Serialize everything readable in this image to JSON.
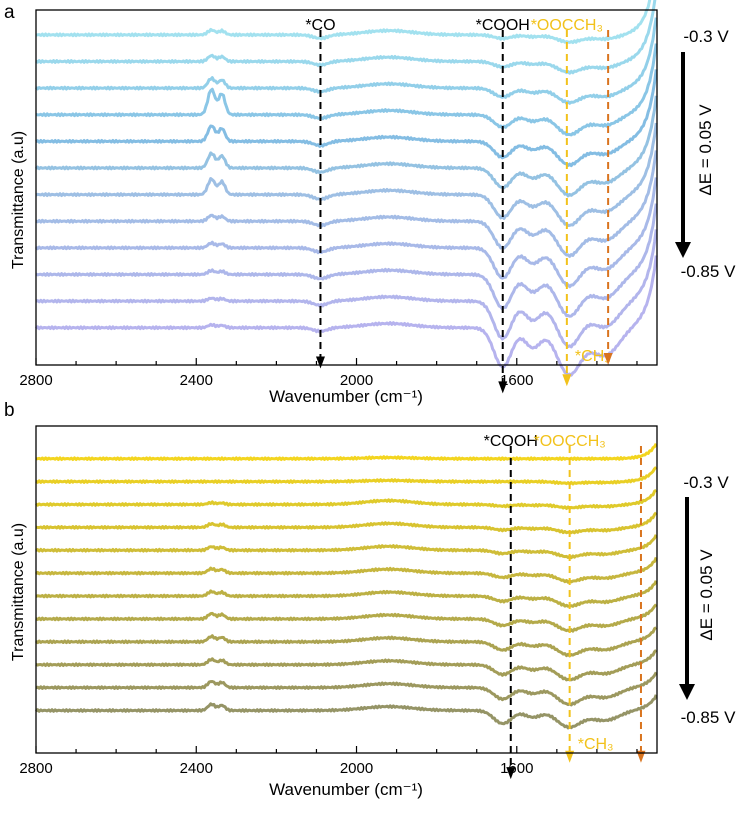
{
  "chart_data": [
    {
      "panel": "a",
      "type": "line",
      "xlabel": "Wavenumber (cm⁻¹)",
      "ylabel": "Transmittance (a.u)",
      "xlim": [
        2800,
        1250
      ],
      "ylim": [
        0,
        100
      ],
      "xticks": [
        2800,
        2400,
        2000,
        1600
      ],
      "xtick_labels": [
        "2800",
        "2400",
        "2000",
        "1600"
      ],
      "potential_top": "-0.3 V",
      "potential_bottom": "-0.85 V",
      "step_label": "ΔE = 0.05 V",
      "potentials": [
        "-0.30 V",
        "-0.35 V",
        "-0.40 V",
        "-0.45 V",
        "-0.50 V",
        "-0.55 V",
        "-0.60 V",
        "-0.65 V",
        "-0.70 V",
        "-0.75 V",
        "-0.80 V",
        "-0.85 V"
      ],
      "series_colors": [
        "#a2e1ef",
        "#9ad8ec",
        "#92cfe9",
        "#8ac6e6",
        "#84bde3",
        "#94c2e2",
        "#9ebfe4",
        "#a3bce6",
        "#a8b9e8",
        "#adb7ea",
        "#b2b5ec",
        "#b6b3ee"
      ],
      "baselines": [
        93,
        85.5,
        78,
        70.5,
        63,
        55.5,
        48,
        40.5,
        33,
        25.5,
        18,
        10.5
      ],
      "features": {
        "co2_doublet_amp": [
          2.5,
          3,
          5,
          13,
          8,
          7.5,
          8,
          3,
          2.5,
          2,
          1.5,
          1.5
        ],
        "co_dip": [
          1,
          1,
          1,
          1,
          1.2,
          1.2,
          1.3,
          1.2,
          1.2,
          1.2,
          1.2,
          1
        ],
        "cooh_dip": [
          1,
          1.5,
          2.5,
          3.5,
          4.5,
          5.5,
          6.5,
          7.5,
          8.5,
          9.5,
          10.5,
          11
        ],
        "ch3_dip": [
          2,
          3,
          4,
          5.5,
          6.5,
          7.5,
          8.5,
          9.5,
          10.5,
          11.5,
          12.5,
          13
        ],
        "oocch3_dip": [
          2,
          3,
          4,
          5,
          6,
          7,
          8,
          9,
          10,
          11,
          12,
          13
        ],
        "edge_rise": 22
      },
      "annotations": [
        {
          "label": "*CO",
          "x": 2090,
          "color": "#000000",
          "from_y": 100,
          "to_y": -1
        },
        {
          "label": "*COOH",
          "x": 1635,
          "color": "#000000",
          "from_y": 100,
          "to_y": -8
        },
        {
          "label": "*OOCCH₃",
          "x": 1475,
          "color": "#f2c21b",
          "from_y": 100,
          "to_y": -6
        },
        {
          "label": "*CH₃",
          "x": 1475,
          "color": "#f2c21b"
        },
        {
          "label": "",
          "x": 1372,
          "color": "#d9741f",
          "from_y": 100,
          "to_y": 0
        }
      ]
    },
    {
      "panel": "b",
      "type": "line",
      "xlabel": "Wavenumber (cm⁻¹)",
      "ylabel": "Transmittance (a.u)",
      "xlim": [
        2800,
        1250
      ],
      "ylim": [
        0,
        100
      ],
      "xticks": [
        2800,
        2400,
        2000,
        1600
      ],
      "xtick_labels": [
        "2800",
        "2400",
        "2000",
        "1600"
      ],
      "potential_top": "-0.3 V",
      "potential_bottom": "-0.85 V",
      "step_label": "ΔE = 0.05 V",
      "potentials": [
        "-0.30 V",
        "-0.35 V",
        "-0.40 V",
        "-0.45 V",
        "-0.50 V",
        "-0.55 V",
        "-0.60 V",
        "-0.65 V",
        "-0.70 V",
        "-0.75 V",
        "-0.80 V",
        "-0.85 V"
      ],
      "series_colors": [
        "#f3d51f",
        "#e9cf25",
        "#dfca2b",
        "#d8c330",
        "#cfbd38",
        "#c6b63e",
        "#bcb044",
        "#b4aa4a",
        "#aba351",
        "#a39d58",
        "#9c985f",
        "#959466"
      ],
      "baselines": [
        90,
        83,
        76,
        69,
        62,
        55,
        48,
        41,
        34,
        27,
        20,
        13
      ],
      "features": {
        "co2_doublet_amp": [
          0,
          0,
          1,
          2,
          2,
          2.5,
          2.5,
          3,
          3,
          3,
          3.5,
          3.5
        ],
        "co_dip": [
          0,
          0,
          0,
          0,
          0,
          0,
          0,
          0,
          0,
          0,
          0,
          0
        ],
        "cooh_dip": [
          0,
          0,
          0.5,
          0.8,
          1,
          1.3,
          1.6,
          2,
          2.5,
          3,
          3.5,
          4
        ],
        "ch3_dip": [
          0,
          0.5,
          1,
          1.5,
          2,
          2.5,
          3,
          3.5,
          4,
          4.5,
          5,
          5
        ],
        "oocch3_dip": [
          0,
          0.5,
          1,
          1.5,
          2,
          2.5,
          3,
          3.5,
          4,
          4.5,
          5,
          5
        ],
        "edge_rise": 5
      },
      "annotations": [
        {
          "label": "*COOH",
          "x": 1615,
          "color": "#000000",
          "from_y": 100,
          "to_y": -8
        },
        {
          "label": "*OOCCH₃",
          "x": 1468,
          "color": "#f2c21b",
          "from_y": 100,
          "to_y": -3
        },
        {
          "label": "*CH₃",
          "x": 1468,
          "color": "#f2c21b"
        },
        {
          "label": "",
          "x": 1290,
          "color": "#d9741f",
          "from_y": 100,
          "to_y": -3
        }
      ]
    }
  ],
  "panel_letters": [
    "a",
    "b"
  ]
}
